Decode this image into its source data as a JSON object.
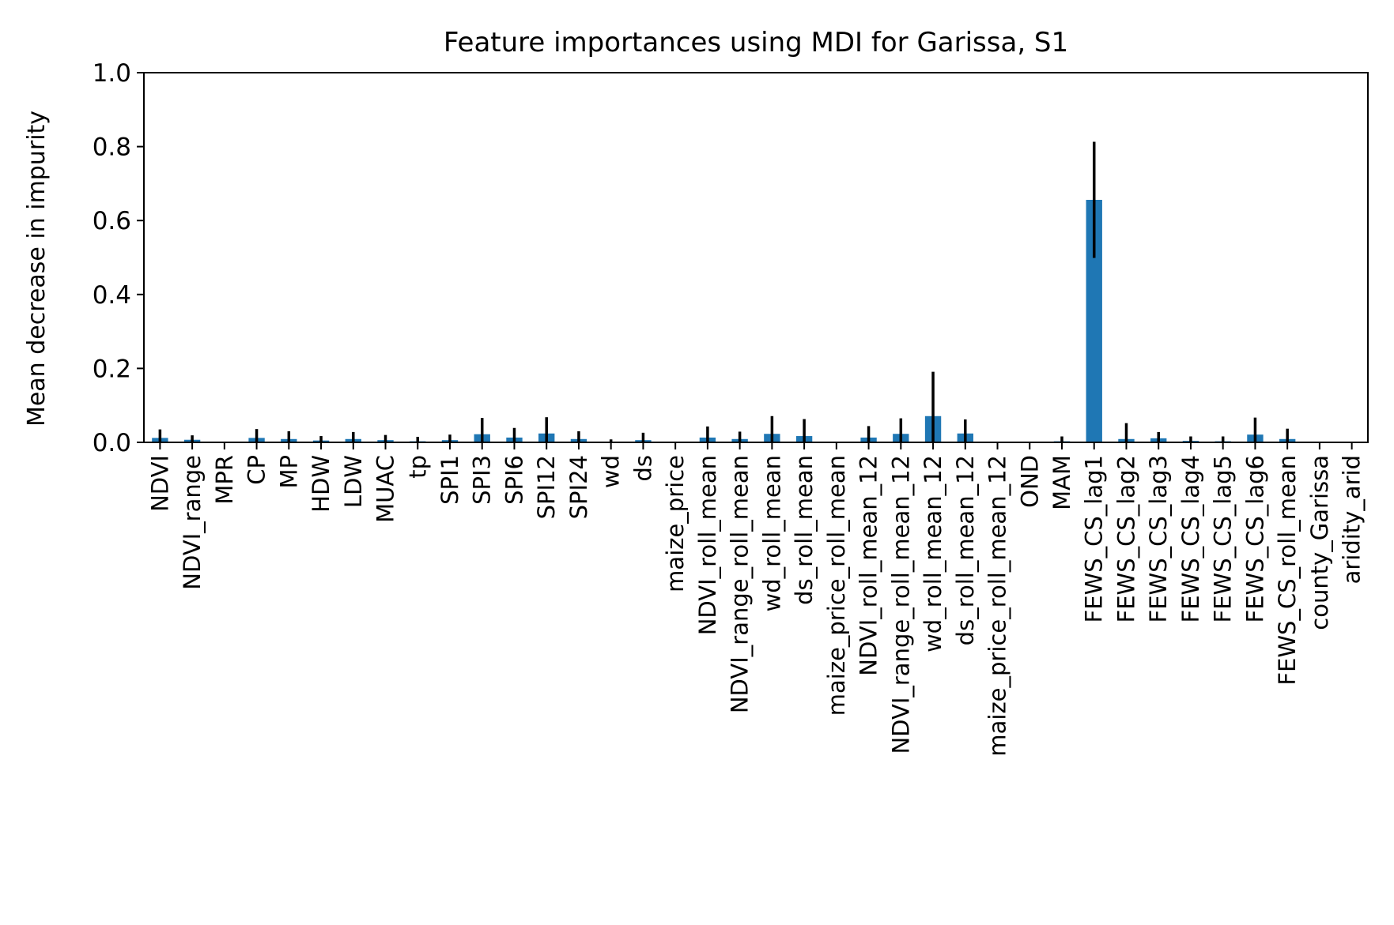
{
  "chart_data": {
    "type": "bar",
    "title": "Feature importances using MDI for Garissa, S1",
    "xlabel": "",
    "ylabel": "Mean decrease in impurity",
    "ylim": [
      0,
      1.0
    ],
    "yticks": [
      "0.0",
      "0.2",
      "0.4",
      "0.6",
      "0.8",
      "1.0"
    ],
    "ytick_values": [
      0,
      0.2,
      0.4,
      0.6,
      0.8,
      1.0
    ],
    "grid": false,
    "colors": {
      "bar": "#1f77b4",
      "error": "#000000"
    },
    "categories": [
      "NDVI",
      "NDVI_range",
      "MPR",
      "CP",
      "MP",
      "HDW",
      "LDW",
      "MUAC",
      "tp",
      "SPI1",
      "SPI3",
      "SPI6",
      "SPI12",
      "SPI24",
      "wd",
      "ds",
      "maize_price",
      "NDVI_roll_mean",
      "NDVI_range_roll_mean",
      "wd_roll_mean",
      "ds_roll_mean",
      "maize_price_roll_mean",
      "NDVI_roll_mean_12",
      "NDVI_range_roll_mean_12",
      "wd_roll_mean_12",
      "ds_roll_mean_12",
      "maize_price_roll_mean_12",
      "OND",
      "MAM",
      "FEWS_CS_lag1",
      "FEWS_CS_lag2",
      "FEWS_CS_lag3",
      "FEWS_CS_lag4",
      "FEWS_CS_lag5",
      "FEWS_CS_lag6",
      "FEWS_CS_roll_mean",
      "county_Garissa",
      "aridity_arid"
    ],
    "values": [
      0.012,
      0.007,
      0.0,
      0.012,
      0.009,
      0.005,
      0.009,
      0.006,
      0.003,
      0.006,
      0.022,
      0.013,
      0.024,
      0.009,
      0.002,
      0.006,
      0.0,
      0.013,
      0.009,
      0.023,
      0.017,
      0.0,
      0.013,
      0.023,
      0.071,
      0.024,
      0.0,
      0.0,
      0.003,
      0.656,
      0.009,
      0.011,
      0.004,
      0.003,
      0.021,
      0.009,
      0.0,
      0.0
    ],
    "errors": [
      0.023,
      0.012,
      0.0,
      0.024,
      0.021,
      0.012,
      0.019,
      0.014,
      0.012,
      0.015,
      0.044,
      0.026,
      0.044,
      0.021,
      0.006,
      0.02,
      0.0,
      0.03,
      0.02,
      0.048,
      0.046,
      0.0,
      0.031,
      0.042,
      0.12,
      0.038,
      0.0,
      0.0,
      0.013,
      0.157,
      0.043,
      0.017,
      0.012,
      0.013,
      0.046,
      0.028,
      0.0,
      0.0
    ]
  }
}
